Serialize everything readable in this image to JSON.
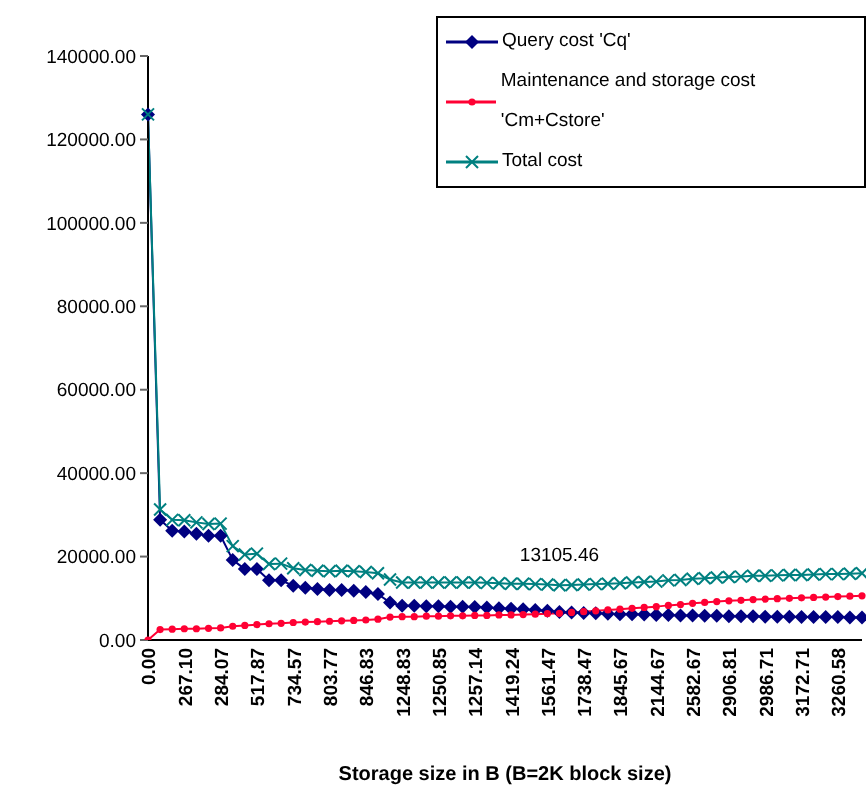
{
  "chart_data": {
    "type": "line",
    "xlabel": "Storage size in B (B=2K block size)",
    "categories": [
      "0.00",
      null,
      null,
      "267.10",
      null,
      null,
      "284.07",
      null,
      null,
      "517.87",
      null,
      null,
      "734.57",
      null,
      null,
      "803.77",
      null,
      null,
      "846.83",
      null,
      null,
      "1248.83",
      null,
      null,
      "1250.85",
      null,
      null,
      "1257.14",
      null,
      null,
      "1419.24",
      null,
      null,
      "1561.47",
      null,
      null,
      "1738.47",
      null,
      null,
      "1845.67",
      null,
      null,
      "2144.67",
      null,
      null,
      "2582.67",
      null,
      null,
      "2906.81",
      null,
      null,
      "2986.71",
      null,
      null,
      "3172.71",
      null,
      null,
      "3260.58",
      null,
      null
    ],
    "series": [
      {
        "name": "Query cost 'Cq'",
        "color": "#000080",
        "marker": "diamond",
        "values": [
          126000,
          28800,
          26200,
          26000,
          25500,
          25000,
          25000,
          19200,
          17000,
          17000,
          14300,
          14300,
          13000,
          12500,
          12200,
          12000,
          12000,
          11800,
          11500,
          11000,
          9000,
          8200,
          8200,
          8100,
          8100,
          8000,
          8000,
          7900,
          7800,
          7600,
          7500,
          7400,
          7200,
          7000,
          6700,
          6600,
          6500,
          6400,
          6300,
          6200,
          6200,
          6100,
          6000,
          6000,
          5900,
          5900,
          5800,
          5800,
          5700,
          5700,
          5700,
          5600,
          5600,
          5600,
          5500,
          5500,
          5500,
          5500,
          5400,
          5400
        ]
      },
      {
        "name": "Maintenance and storage cost 'Cm+Cstore'",
        "color": "#ff0033",
        "marker": "circle",
        "values": [
          0,
          2500,
          2600,
          2700,
          2700,
          2800,
          2900,
          3300,
          3500,
          3700,
          3900,
          4000,
          4200,
          4300,
          4400,
          4500,
          4600,
          4700,
          4800,
          5000,
          5500,
          5600,
          5600,
          5700,
          5700,
          5800,
          5800,
          5900,
          5900,
          6000,
          6000,
          6100,
          6200,
          6300,
          6400,
          6600,
          6800,
          7000,
          7200,
          7400,
          7600,
          7800,
          8000,
          8300,
          8500,
          8800,
          9000,
          9200,
          9400,
          9500,
          9700,
          9800,
          9900,
          10000,
          10100,
          10200,
          10300,
          10400,
          10500,
          10600
        ]
      },
      {
        "name": "Total cost",
        "color": "#008080",
        "marker": "cross",
        "values": [
          126000,
          31300,
          28800,
          28700,
          28200,
          27800,
          27900,
          22500,
          20500,
          20700,
          18200,
          18300,
          17200,
          16800,
          16600,
          16500,
          16600,
          16500,
          16300,
          16000,
          14500,
          13800,
          13800,
          13800,
          13800,
          13800,
          13800,
          13800,
          13700,
          13600,
          13500,
          13500,
          13400,
          13300,
          13105.46,
          13200,
          13300,
          13400,
          13500,
          13600,
          13800,
          13900,
          14000,
          14300,
          14400,
          14700,
          14800,
          15000,
          15100,
          15200,
          15400,
          15400,
          15500,
          15600,
          15600,
          15700,
          15800,
          15800,
          15900,
          16000
        ]
      }
    ],
    "ylim": [
      0,
      140000
    ],
    "yticks": [
      {
        "value": 0,
        "label": "0.00"
      },
      {
        "value": 20000,
        "label": "20000.00"
      },
      {
        "value": 40000,
        "label": "40000.00"
      },
      {
        "value": 60000,
        "label": "60000.00"
      },
      {
        "value": 80000,
        "label": "80000.00"
      },
      {
        "value": 100000,
        "label": "100000.00"
      },
      {
        "value": 120000,
        "label": "120000.00"
      },
      {
        "value": 140000,
        "label": "140000.00"
      }
    ],
    "annotations": [
      {
        "text": "13105.46",
        "y": 13105.46
      }
    ],
    "grid": false,
    "legend": "top right"
  }
}
